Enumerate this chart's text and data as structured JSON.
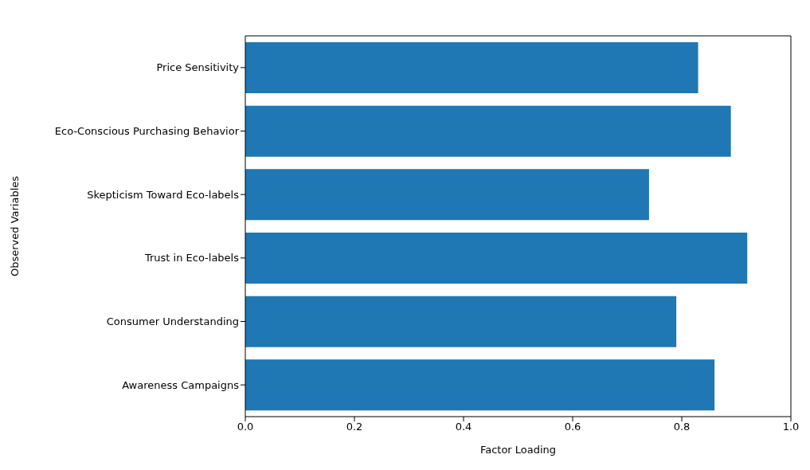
{
  "chart_data": {
    "type": "bar",
    "orientation": "horizontal",
    "xlabel": "Factor Loading",
    "ylabel": "Observed Variables",
    "categories": [
      "Price Sensitivity",
      "Eco-Conscious Purchasing Behavior",
      "Skepticism Toward Eco-labels",
      "Trust in Eco-labels",
      "Consumer Understanding",
      "Awareness Campaigns"
    ],
    "values": [
      0.83,
      0.89,
      0.74,
      0.92,
      0.79,
      0.86
    ],
    "color": "#1f77b4",
    "xlim": [
      0,
      1
    ],
    "xticks": [
      {
        "value": 0,
        "label": "0.0"
      },
      0.2,
      0.4,
      0.6,
      0.8,
      {
        "value": 1,
        "label": "1.0"
      }
    ],
    "grid": false
  }
}
